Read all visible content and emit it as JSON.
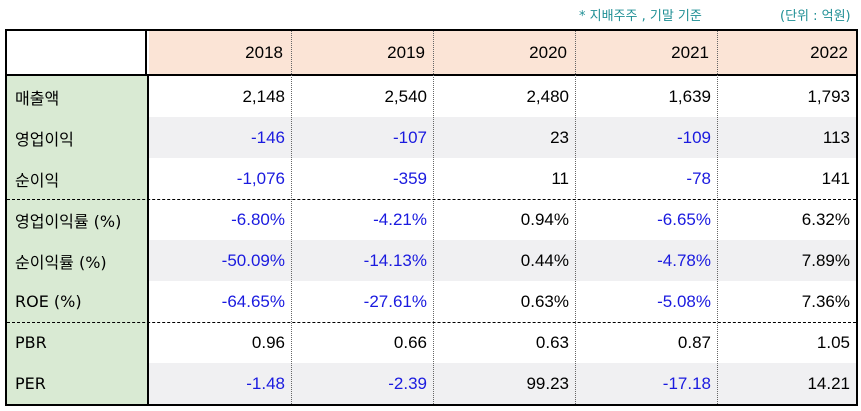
{
  "notes": {
    "basis": "* 지배주주 , 기말 기준",
    "unit": "(단위 : 억원)"
  },
  "columns": [
    "2018",
    "2019",
    "2020",
    "2021",
    "2022"
  ],
  "rows": [
    {
      "label": "매출액",
      "values": [
        "2,148",
        "2,540",
        "2,480",
        "1,639",
        "1,793"
      ]
    },
    {
      "label": "영업이익",
      "values": [
        "-146",
        "-107",
        "23",
        "-109",
        "113"
      ]
    },
    {
      "label": "순이익",
      "values": [
        "-1,076",
        "-359",
        "11",
        "-78",
        "141"
      ]
    },
    {
      "label": "영업이익률 (%)",
      "values": [
        "-6.80%",
        "-4.21%",
        "0.94%",
        "-6.65%",
        "6.32%"
      ]
    },
    {
      "label": "순이익률 (%)",
      "values": [
        "-50.09%",
        "-14.13%",
        "0.44%",
        "-4.78%",
        "7.89%"
      ]
    },
    {
      "label": "ROE (%)",
      "values": [
        "-64.65%",
        "-27.61%",
        "0.63%",
        "-5.08%",
        "7.36%"
      ]
    },
    {
      "label": "PBR",
      "values": [
        "0.96",
        "0.66",
        "0.63",
        "0.87",
        "1.05"
      ]
    },
    {
      "label": "PER",
      "values": [
        "-1.48",
        "-2.39",
        "99.23",
        "-17.18",
        "14.21"
      ]
    }
  ],
  "colors": {
    "header_bg": "#fbe4d6",
    "label_bg": "#d9ead3",
    "negative": "#1a1adf",
    "note": "#1f8f95"
  }
}
